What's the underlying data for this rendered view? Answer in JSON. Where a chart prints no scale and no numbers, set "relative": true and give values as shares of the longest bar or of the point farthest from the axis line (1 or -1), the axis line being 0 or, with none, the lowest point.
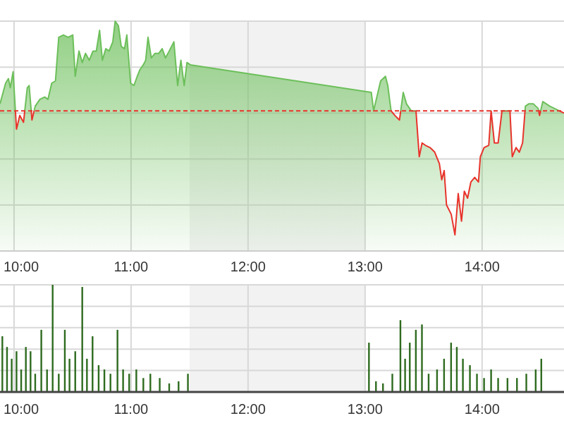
{
  "chart_data": [
    {
      "type": "area",
      "relative": true,
      "x": [
        9.88,
        9.928,
        9.952,
        9.968,
        9.992,
        10.021,
        10.049,
        10.081,
        10.113,
        10.129,
        10.153,
        10.181,
        10.221,
        10.262,
        10.29,
        10.322,
        10.354,
        10.382,
        10.422,
        10.462,
        10.502,
        10.523,
        10.555,
        10.583,
        10.611,
        10.643,
        10.675,
        10.703,
        10.731,
        10.755,
        10.784,
        10.812,
        10.844,
        10.864,
        10.892,
        10.916,
        10.944,
        10.964,
        10.996,
        11.025,
        11.053,
        11.077,
        11.105,
        11.125,
        11.145,
        11.173,
        11.205,
        11.237,
        11.266,
        11.294,
        11.326,
        11.366,
        11.398,
        11.426,
        11.454,
        11.478,
        11.506,
        13.053,
        13.073,
        13.133,
        13.174,
        13.194,
        13.222,
        13.254,
        13.294,
        13.326,
        13.354,
        13.394,
        13.435,
        13.463,
        13.487,
        13.515,
        13.555,
        13.595,
        13.635,
        13.655,
        13.676,
        13.696,
        13.736,
        13.768,
        13.796,
        13.824,
        13.848,
        13.876,
        13.904,
        13.937,
        13.969,
        13.985,
        14.017,
        14.057,
        14.077,
        14.105,
        14.137,
        14.17,
        14.238,
        14.258,
        14.29,
        14.318,
        14.346,
        14.37,
        14.398,
        14.439,
        14.479,
        14.491,
        14.519,
        14.579,
        14.659,
        14.7
      ],
      "series": [
        {
          "color": "#6cbf5a",
          "values": [
            0.64,
            0.73,
            0.75,
            0.71,
            0.78,
            0.53,
            0.59,
            0.56,
            0.71,
            0.72,
            0.57,
            0.63,
            0.66,
            0.67,
            0.66,
            0.73,
            0.74,
            0.93,
            0.94,
            0.93,
            0.94,
            0.76,
            0.87,
            0.82,
            0.86,
            0.83,
            0.87,
            0.87,
            0.96,
            0.83,
            0.88,
            0.87,
            0.91,
            1.0,
            0.98,
            0.89,
            0.88,
            0.94,
            0.73,
            0.72,
            0.76,
            0.79,
            0.81,
            0.83,
            0.93,
            0.84,
            0.86,
            0.86,
            0.88,
            0.84,
            0.87,
            0.91,
            0.72,
            0.83,
            0.72,
            0.82,
            0.81,
            0.69,
            0.61,
            0.74,
            0.76,
            0.72,
            0.61,
            0.59,
            0.57,
            0.69,
            0.64,
            0.61,
            0.61,
            0.41,
            0.47,
            0.46,
            0.45,
            0.43,
            0.38,
            0.31,
            0.35,
            0.2,
            0.16,
            0.07,
            0.25,
            0.13,
            0.26,
            0.23,
            0.3,
            0.32,
            0.3,
            0.41,
            0.45,
            0.46,
            0.61,
            0.47,
            0.47,
            0.61,
            0.61,
            0.41,
            0.45,
            0.43,
            0.47,
            0.63,
            0.64,
            0.64,
            0.62,
            0.59,
            0.65,
            0.63,
            0.61,
            0.6
          ]
        }
      ],
      "xlim": [
        9.88,
        14.7
      ],
      "xticks": [
        {
          "value": 10,
          "label": "10:00"
        },
        {
          "value": 11,
          "label": "11:00"
        },
        {
          "value": 12,
          "label": "12:00"
        },
        {
          "value": 13,
          "label": "13:00"
        },
        {
          "value": 14,
          "label": "14:00"
        }
      ],
      "grid": true,
      "ref_lines": [
        {
          "axis": "y",
          "value": 0.61,
          "color": "#e8332b",
          "line_style": "dashed"
        }
      ],
      "bands": [
        {
          "axis": "x",
          "from": 11.5,
          "to": 13,
          "color": "#f2f2f2"
        }
      ]
    },
    {
      "type": "bar",
      "relative": true,
      "x": [
        9.9,
        9.94,
        9.98,
        10.021,
        10.061,
        10.101,
        10.141,
        10.181,
        10.233,
        10.282,
        10.33,
        10.382,
        10.434,
        10.474,
        10.523,
        10.583,
        10.623,
        10.671,
        10.723,
        10.772,
        10.824,
        10.884,
        10.932,
        10.984,
        11.045,
        11.105,
        11.165,
        11.245,
        11.326,
        11.406,
        11.486,
        13.033,
        13.093,
        13.153,
        13.233,
        13.302,
        13.342,
        13.382,
        13.434,
        13.486,
        13.543,
        13.615,
        13.675,
        13.735,
        13.784,
        13.836,
        13.896,
        13.956,
        14.017,
        14.077,
        14.137,
        14.217,
        14.298,
        14.378,
        14.458,
        14.506
      ],
      "series": [
        {
          "color": "#2e6b1f",
          "values": [
            0.52,
            0.42,
            0.31,
            0.38,
            0.21,
            0.42,
            0.38,
            0.17,
            0.58,
            0.21,
            1.0,
            0.17,
            0.58,
            0.31,
            0.38,
            0.98,
            0.31,
            0.52,
            0.25,
            0.21,
            0.17,
            0.58,
            0.21,
            0.17,
            0.21,
            0.13,
            0.17,
            0.13,
            0.08,
            0.1,
            0.17,
            0.46,
            0.1,
            0.08,
            0.17,
            0.67,
            0.31,
            0.46,
            0.58,
            0.63,
            0.17,
            0.21,
            0.31,
            0.46,
            0.42,
            0.31,
            0.25,
            0.17,
            0.13,
            0.21,
            0.13,
            0.13,
            0.13,
            0.17,
            0.21,
            0.31
          ]
        }
      ],
      "xlim": [
        9.88,
        14.7
      ],
      "xticks": [
        {
          "value": 10,
          "label": "10:00"
        },
        {
          "value": 11,
          "label": "11:00"
        },
        {
          "value": 12,
          "label": "12:00"
        },
        {
          "value": 13,
          "label": "13:00"
        },
        {
          "value": 14,
          "label": "14:00"
        }
      ],
      "grid": true,
      "bands": [
        {
          "axis": "x",
          "from": 11.5,
          "to": 13,
          "color": "#f2f2f2"
        }
      ]
    }
  ]
}
